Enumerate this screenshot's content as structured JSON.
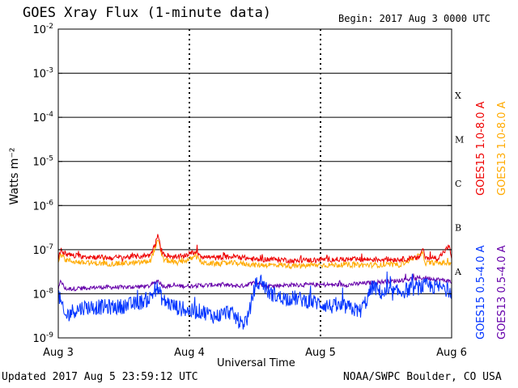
{
  "page": {
    "title": "GOES Xray Flux (1-minute data)",
    "begin": "Begin:  2017 Aug 3 0000 UTC",
    "updated": "Updated 2017 Aug  5 23:59:12 UTC",
    "credit": "NOAA/SWPC Boulder, CO USA"
  },
  "chart_data": {
    "type": "line",
    "title": "GOES Xray Flux (1-minute data)",
    "xlabel": "Universal Time",
    "ylabel": "Watts m⁻²",
    "yscale": "log",
    "ylim": [
      1e-09,
      0.01
    ],
    "xlim": [
      "2017-08-03 00:00",
      "2017-08-06 00:00"
    ],
    "xticks": [
      "Aug 3",
      "Aug 4",
      "Aug 5",
      "Aug 6"
    ],
    "yticks": [
      {
        "mantissa": "10",
        "exp": "-9"
      },
      {
        "mantissa": "10",
        "exp": "-8"
      },
      {
        "mantissa": "10",
        "exp": "-7"
      },
      {
        "mantissa": "10",
        "exp": "-6"
      },
      {
        "mantissa": "10",
        "exp": "-5"
      },
      {
        "mantissa": "10",
        "exp": "-4"
      },
      {
        "mantissa": "10",
        "exp": "-3"
      },
      {
        "mantissa": "10",
        "exp": "-2"
      }
    ],
    "flare_classes": [
      "A",
      "B",
      "C",
      "M",
      "X"
    ],
    "grid": true,
    "legend_placement": "right-vertical",
    "series": [
      {
        "name": "GOES15 1.0-8.0 A",
        "color": "#ee0000",
        "x": [
          0,
          0.02,
          0.05,
          0.1,
          0.2,
          0.4,
          0.6,
          0.7,
          0.74,
          0.76,
          0.78,
          0.8,
          0.9,
          1.0,
          1.05,
          1.1,
          1.2,
          1.35,
          1.5,
          1.7,
          1.8,
          2.0,
          2.2,
          2.4,
          2.6,
          2.75,
          2.78,
          2.8,
          2.9,
          2.98,
          3.0
        ],
        "values": [
          6e-08,
          1e-07,
          8e-08,
          7.5e-08,
          7e-08,
          6.5e-08,
          7e-08,
          7.5e-08,
          1.3e-07,
          2.2e-07,
          1.1e-07,
          8e-08,
          6.5e-08,
          8e-08,
          9e-08,
          7e-08,
          6.5e-08,
          7e-08,
          6e-08,
          6e-08,
          5.5e-08,
          6e-08,
          6e-08,
          6e-08,
          6e-08,
          6.5e-08,
          1.1e-07,
          6.5e-08,
          6.5e-08,
          1.2e-07,
          6.5e-08
        ]
      },
      {
        "name": "GOES13 1.0-8.0 A",
        "color": "#ffaa00",
        "x": [
          0,
          0.02,
          0.05,
          0.1,
          0.2,
          0.4,
          0.6,
          0.7,
          0.76,
          0.8,
          0.9,
          1.0,
          1.05,
          1.1,
          1.2,
          1.35,
          1.5,
          1.7,
          1.8,
          2.0,
          2.2,
          2.4,
          2.6,
          2.78,
          2.8,
          2.9,
          3.0
        ],
        "values": [
          5e-08,
          8e-08,
          6e-08,
          5.5e-08,
          5e-08,
          4.8e-08,
          5e-08,
          5.5e-08,
          1.6e-07,
          6e-08,
          5e-08,
          6e-08,
          7e-08,
          5e-08,
          4.8e-08,
          5e-08,
          4.5e-08,
          4.5e-08,
          4.2e-08,
          4.5e-08,
          4.5e-08,
          4.5e-08,
          4.5e-08,
          8e-08,
          5e-08,
          5e-08,
          5e-08
        ]
      },
      {
        "name": "GOES15 0.5-4.0 A",
        "color": "#0033ff",
        "x": [
          0,
          0.05,
          0.1,
          0.2,
          0.3,
          0.45,
          0.6,
          0.7,
          0.75,
          0.8,
          0.9,
          1.0,
          1.1,
          1.2,
          1.3,
          1.35,
          1.4,
          1.45,
          1.5,
          1.55,
          1.6,
          1.7,
          1.8,
          1.9,
          2.0,
          2.1,
          2.2,
          2.3,
          2.35,
          2.4,
          2.45,
          2.5,
          2.6,
          2.7,
          2.8,
          2.9,
          3.0
        ],
        "values": [
          1e-08,
          3e-09,
          4e-09,
          5e-09,
          5e-09,
          5e-09,
          6e-09,
          8e-09,
          1.4e-08,
          7e-09,
          5e-09,
          4e-09,
          4e-09,
          3e-09,
          4e-09,
          3e-09,
          2e-09,
          3e-09,
          1.5e-08,
          2e-08,
          1.1e-08,
          8e-09,
          8e-09,
          7e-09,
          6e-09,
          5e-09,
          5e-09,
          4e-09,
          7e-09,
          1.5e-08,
          1.1e-08,
          1e-08,
          1.1e-08,
          1.3e-08,
          1.5e-08,
          1.4e-08,
          1.2e-08
        ]
      },
      {
        "name": "GOES13 0.5-4.0 A",
        "color": "#6600aa",
        "x": [
          0,
          0.02,
          0.05,
          0.1,
          0.3,
          0.5,
          0.7,
          0.76,
          0.8,
          1.0,
          1.2,
          1.4,
          1.5,
          1.6,
          1.8,
          2.0,
          2.2,
          2.4,
          2.6,
          2.7,
          2.8,
          2.9,
          3.0
        ],
        "values": [
          1.2e-08,
          2e-08,
          1.3e-08,
          1.3e-08,
          1.4e-08,
          1.4e-08,
          1.5e-08,
          2e-08,
          1.5e-08,
          1.5e-08,
          1.6e-08,
          1.5e-08,
          1.8e-08,
          1.5e-08,
          1.6e-08,
          1.6e-08,
          1.6e-08,
          1.8e-08,
          2e-08,
          2.2e-08,
          2.3e-08,
          2.1e-08,
          1.9e-08
        ]
      }
    ]
  }
}
